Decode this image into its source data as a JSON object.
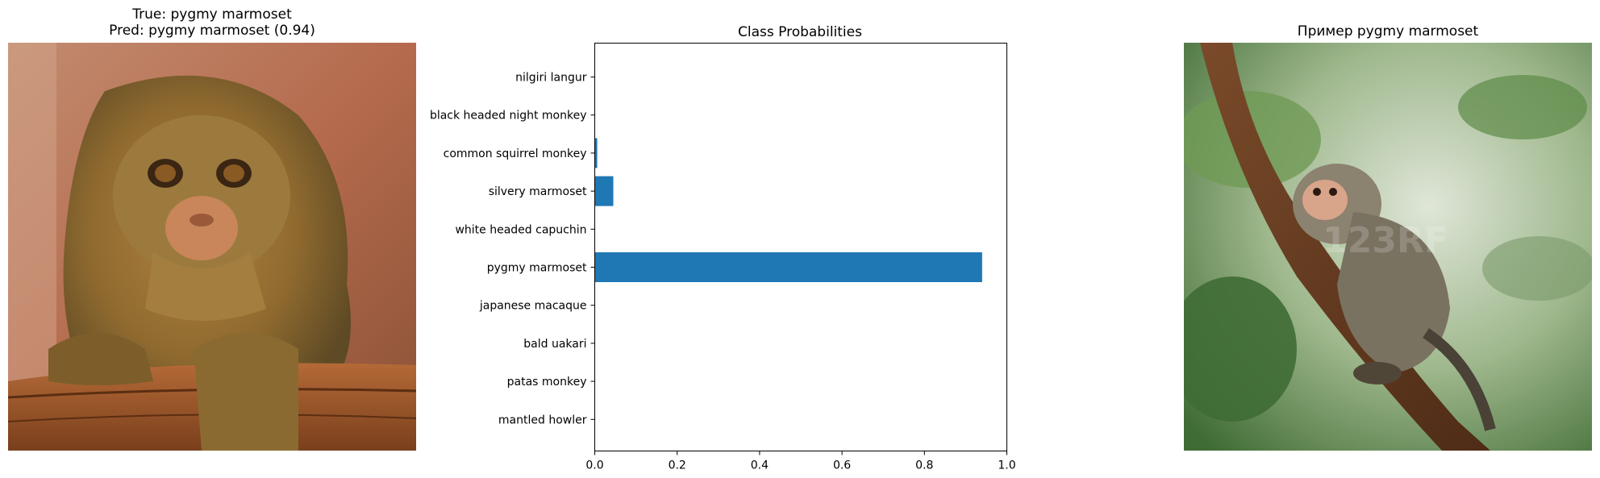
{
  "left_panel": {
    "title_line1": "True: pygmy marmoset",
    "title_line2": "Pred: pygmy marmoset (0.94)",
    "image_subject": "pygmy marmoset photo"
  },
  "right_panel": {
    "title": "Пример pygmy marmoset",
    "image_subject": "pygmy marmoset on branch photo"
  },
  "chart_data": {
    "type": "bar",
    "orientation": "horizontal",
    "title": "Class Probabilities",
    "xlabel": "",
    "ylabel": "",
    "categories": [
      "nilgiri langur",
      "black headed night monkey",
      "common squirrel monkey",
      "silvery marmoset",
      "white headed capuchin",
      "pygmy marmoset",
      "japanese macaque",
      "bald uakari",
      "patas monkey",
      "mantled howler"
    ],
    "values": [
      0.0,
      0.0,
      0.006,
      0.045,
      0.0,
      0.94,
      0.0,
      0.0,
      0.0,
      0.0
    ],
    "xlim": [
      0,
      1.0
    ],
    "xticks": [
      "0.0",
      "0.2",
      "0.4",
      "0.6",
      "0.8",
      "1.0"
    ],
    "bar_color": "#1f77b4",
    "grid": false,
    "legend": "none"
  }
}
